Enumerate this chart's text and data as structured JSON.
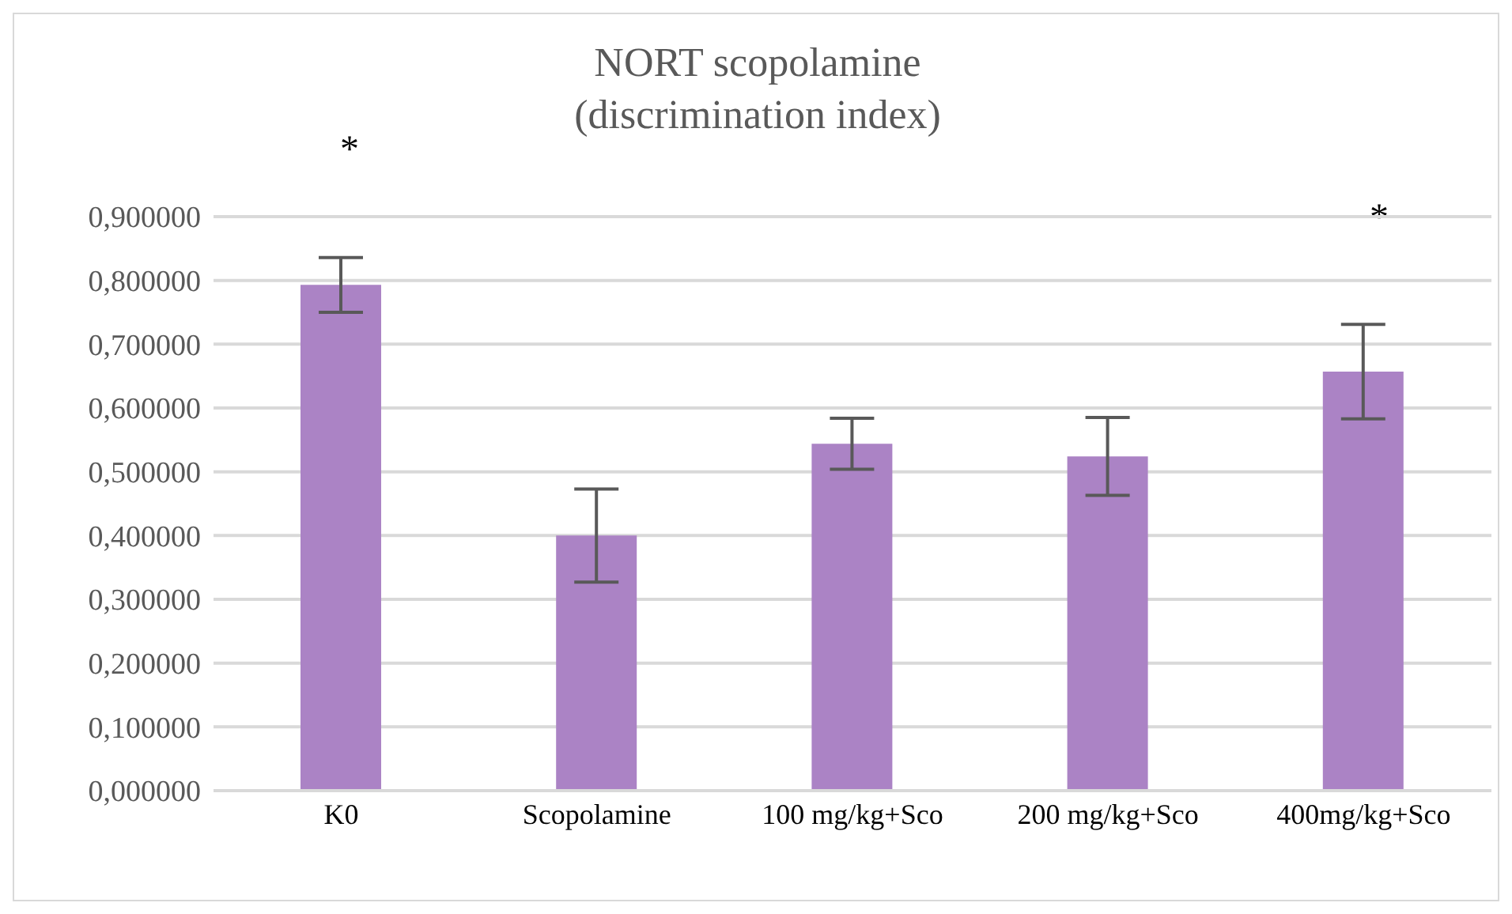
{
  "chart_data": {
    "type": "bar",
    "title": "NORT scopolamine\n(discrimination index)",
    "categories": [
      "K0",
      "Scopolamine",
      "100 mg/kg+Sco",
      "200 mg/kg+Sco",
      "400mg/kg+Sco"
    ],
    "values": [
      0.793,
      0.4,
      0.544,
      0.524,
      0.657
    ],
    "errors": [
      0.043,
      0.073,
      0.04,
      0.061,
      0.074
    ],
    "color": "#ab83c5",
    "ylim": [
      0,
      0.9
    ],
    "yticks": [
      {
        "value": 0,
        "label": "0,000000"
      },
      {
        "value": 0.1,
        "label": "0,100000"
      },
      {
        "value": 0.2,
        "label": "0,200000"
      },
      {
        "value": 0.3,
        "label": "0,300000"
      },
      {
        "value": 0.4,
        "label": "0,400000"
      },
      {
        "value": 0.5,
        "label": "0,500000"
      },
      {
        "value": 0.6,
        "label": "0,600000"
      },
      {
        "value": 0.7,
        "label": "0,700000"
      },
      {
        "value": 0.8,
        "label": "0,800000"
      },
      {
        "value": 0.9,
        "label": "0,900000"
      }
    ],
    "grid": "y",
    "annotations": [
      "*",
      "*"
    ]
  }
}
